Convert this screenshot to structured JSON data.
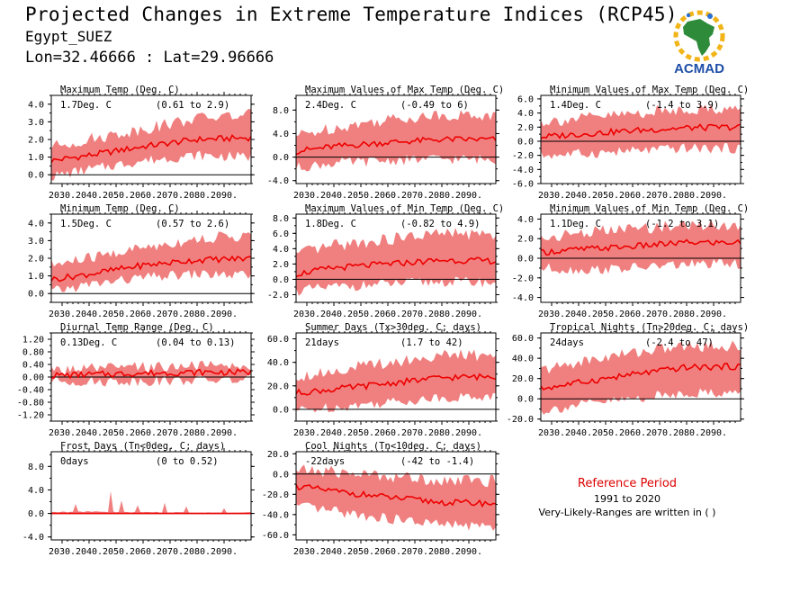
{
  "header": {
    "title": "Projected Changes in Extreme Temperature Indices (RCP45)",
    "location": "Egypt_SUEZ",
    "coords": "Lon=32.46666 : Lat=29.96666"
  },
  "logo": {
    "text": "ACMAD",
    "icon": "africa-map-icon"
  },
  "reference": {
    "title": "Reference Period",
    "years": "1991 to 2020",
    "note": "Very-Likely-Ranges are written in ( )"
  },
  "colors": {
    "band": "#f08080",
    "line": "#ee0000",
    "zero": "#000000",
    "ref_title": "#dd0000"
  },
  "chart_data": [
    {
      "type": "area",
      "id": "maxtemp",
      "title": "Maximum Temp (Deg. C)",
      "mean_label": "1.7Deg. C",
      "range_label": "(0.61 to 2.9)",
      "x_ticks": [
        "2030.",
        "2040.",
        "2050.",
        "2060.",
        "2070.",
        "2080.",
        "2090."
      ],
      "x_range": [
        2026,
        2100
      ],
      "ylim": [
        -0.5,
        4.5
      ],
      "yticks": [
        0,
        1,
        2,
        3,
        4
      ],
      "ydec": 1,
      "anchors": {
        "x": [
          2026,
          2040,
          2060,
          2080,
          2100
        ],
        "mean": [
          0.8,
          1.1,
          1.6,
          2.0,
          2.1
        ],
        "low": [
          -0.1,
          0.3,
          0.8,
          1.1,
          1.0
        ],
        "high": [
          1.6,
          2.0,
          2.6,
          3.2,
          3.4
        ]
      }
    },
    {
      "type": "area",
      "id": "maxofmax",
      "title": "Maximum Values of Max Temp (Deg. C)",
      "mean_label": "2.4Deg. C",
      "range_label": "(-0.49 to 6)",
      "x_ticks": [
        "2030.",
        "2040.",
        "2050.",
        "2060.",
        "2070.",
        "2080.",
        "2090."
      ],
      "x_range": [
        2026,
        2100
      ],
      "ylim": [
        -4.5,
        10.5
      ],
      "yticks": [
        -4,
        0,
        4,
        8
      ],
      "ydec": 1,
      "anchors": {
        "x": [
          2026,
          2040,
          2060,
          2080,
          2100
        ],
        "mean": [
          1.0,
          1.8,
          2.5,
          3.0,
          3.0
        ],
        "low": [
          -1.8,
          -1.0,
          -0.6,
          -0.3,
          -0.4
        ],
        "high": [
          3.6,
          5.0,
          6.4,
          7.2,
          7.0
        ]
      }
    },
    {
      "type": "area",
      "id": "minofmax",
      "title": "Minimum Values of Max Temp (Deg. C)",
      "mean_label": "1.4Deg. C",
      "range_label": "(-1.4 to 3.9)",
      "x_ticks": [
        "2030.",
        "2040.",
        "2050.",
        "2060.",
        "2070.",
        "2080.",
        "2090."
      ],
      "x_range": [
        2026,
        2100
      ],
      "ylim": [
        -6,
        6.5
      ],
      "yticks": [
        -6,
        -4,
        -2,
        0,
        2,
        4,
        6
      ],
      "ydec": 1,
      "anchors": {
        "x": [
          2026,
          2040,
          2060,
          2080,
          2100
        ],
        "mean": [
          0.6,
          1.0,
          1.5,
          1.9,
          2.0
        ],
        "low": [
          -2.0,
          -1.8,
          -1.4,
          -1.0,
          -1.0
        ],
        "high": [
          2.8,
          3.2,
          3.9,
          4.6,
          4.6
        ]
      }
    },
    {
      "type": "area",
      "id": "mintemp",
      "title": "Minimum Temp (Deg. C)",
      "mean_label": "1.5Deg. C",
      "range_label": "(0.57 to 2.6)",
      "x_ticks": [
        "2030.",
        "2040.",
        "2050.",
        "2060.",
        "2070.",
        "2080.",
        "2090."
      ],
      "x_range": [
        2026,
        2100
      ],
      "ylim": [
        -0.5,
        4.5
      ],
      "yticks": [
        0,
        1,
        2,
        3,
        4
      ],
      "ydec": 1,
      "anchors": {
        "x": [
          2026,
          2040,
          2060,
          2080,
          2100
        ],
        "mean": [
          0.8,
          1.1,
          1.6,
          1.9,
          2.0
        ],
        "low": [
          0.1,
          0.5,
          0.9,
          1.1,
          1.0
        ],
        "high": [
          1.6,
          2.0,
          2.6,
          3.1,
          3.3
        ]
      }
    },
    {
      "type": "area",
      "id": "maxofmin",
      "title": "Maximum Values of Min Temp (Deg. C)",
      "mean_label": "1.8Deg. C",
      "range_label": "(-0.82 to 4.9)",
      "x_ticks": [
        "2030.",
        "2040.",
        "2050.",
        "2060.",
        "2070.",
        "2080.",
        "2090."
      ],
      "x_range": [
        2026,
        2100
      ],
      "ylim": [
        -3,
        8.5
      ],
      "yticks": [
        -2,
        0,
        2,
        4,
        6,
        8
      ],
      "ydec": 1,
      "anchors": {
        "x": [
          2026,
          2040,
          2060,
          2080,
          2100
        ],
        "mean": [
          0.7,
          1.5,
          2.0,
          2.5,
          2.4
        ],
        "low": [
          -1.5,
          -1.0,
          -0.6,
          -0.3,
          -0.4
        ],
        "high": [
          3.2,
          4.4,
          5.2,
          6.0,
          5.8
        ]
      }
    },
    {
      "type": "area",
      "id": "minofmin",
      "title": "Minimum Values of Min Temp (Deg. C)",
      "mean_label": "1.1Deg. C",
      "range_label": "(-1.2 to 3.1)",
      "x_ticks": [
        "2030.",
        "2040.",
        "2050.",
        "2060.",
        "2070.",
        "2080.",
        "2090."
      ],
      "x_range": [
        2026,
        2100
      ],
      "ylim": [
        -4.5,
        4.5
      ],
      "yticks": [
        -4,
        -2,
        0,
        2,
        4
      ],
      "ydec": 1,
      "anchors": {
        "x": [
          2026,
          2040,
          2060,
          2080,
          2100
        ],
        "mean": [
          0.6,
          0.9,
          1.2,
          1.6,
          1.6
        ],
        "low": [
          -1.0,
          -1.2,
          -1.0,
          -0.6,
          -0.6
        ],
        "high": [
          2.0,
          2.6,
          3.0,
          3.4,
          3.4
        ]
      }
    },
    {
      "type": "area",
      "id": "dtr",
      "title": "Diurnal Temp Range (Deg. C)",
      "mean_label": "0.13Deg. C",
      "range_label": "(0.04 to 0.13)",
      "x_ticks": [
        "2030.",
        "2040.",
        "2050.",
        "2060.",
        "2070.",
        "2080.",
        "2090."
      ],
      "x_range": [
        2026,
        2100
      ],
      "ylim": [
        -1.4,
        1.4
      ],
      "yticks": [
        -1.2,
        -0.8,
        -0.4,
        0,
        0.4,
        0.8,
        1.2
      ],
      "ydec": 2,
      "anchors": {
        "x": [
          2026,
          2040,
          2060,
          2080,
          2100
        ],
        "mean": [
          0.05,
          0.08,
          0.12,
          0.15,
          0.15
        ],
        "low": [
          -0.12,
          -0.15,
          -0.12,
          -0.1,
          -0.1
        ],
        "high": [
          0.2,
          0.25,
          0.3,
          0.35,
          0.32
        ]
      }
    },
    {
      "type": "area",
      "id": "summer",
      "title": "Summer Days (Tx>30deg. C; days)",
      "mean_label": "21days",
      "range_label": "(1.7 to 42)",
      "x_ticks": [
        "2030.",
        "2040.",
        "2050.",
        "2060.",
        "2070.",
        "2080.",
        "2090."
      ],
      "x_range": [
        2026,
        2100
      ],
      "ylim": [
        -10,
        65
      ],
      "yticks": [
        0,
        20,
        40,
        60
      ],
      "ydec": 1,
      "anchors": {
        "x": [
          2026,
          2040,
          2060,
          2080,
          2100
        ],
        "mean": [
          14,
          17,
          22,
          27,
          28
        ],
        "low": [
          -1,
          2,
          6,
          10,
          11
        ],
        "high": [
          28,
          33,
          40,
          46,
          46
        ]
      }
    },
    {
      "type": "area",
      "id": "tropical",
      "title": "Tropical Nights (Tn>20deg. C; days)",
      "mean_label": "24days",
      "range_label": "(-2.4 to 47)",
      "x_ticks": [
        "2030.",
        "2040.",
        "2050.",
        "2060.",
        "2070.",
        "2080.",
        "2090."
      ],
      "x_range": [
        2026,
        2100
      ],
      "ylim": [
        -22,
        65
      ],
      "yticks": [
        -20,
        0,
        20,
        40,
        60
      ],
      "ydec": 1,
      "anchors": {
        "x": [
          2026,
          2040,
          2060,
          2080,
          2100
        ],
        "mean": [
          10,
          16,
          24,
          31,
          32
        ],
        "low": [
          -12,
          -6,
          0,
          6,
          6
        ],
        "high": [
          28,
          36,
          46,
          52,
          52
        ]
      }
    },
    {
      "type": "area",
      "id": "frost",
      "title": "Frost Days (Tn<0deg. C; days)",
      "mean_label": "0days",
      "range_label": "(0 to 0.52)",
      "x_ticks": [
        "2030.",
        "2040.",
        "2050.",
        "2060.",
        "2070.",
        "2080.",
        "2090."
      ],
      "x_range": [
        2026,
        2100
      ],
      "ylim": [
        -4.5,
        10.5
      ],
      "yticks": [
        -4,
        0,
        4,
        8
      ],
      "ydec": 1,
      "anchors": {
        "x": [
          2026,
          2040,
          2060,
          2080,
          2100
        ],
        "mean": [
          0,
          0,
          0,
          0,
          0
        ],
        "low": [
          0,
          0,
          0,
          0,
          0
        ],
        "high": [
          0.3,
          0.4,
          0.3,
          0.2,
          0.2
        ]
      },
      "spikes": [
        [
          2035,
          1.6
        ],
        [
          2048,
          3.8
        ],
        [
          2052,
          2.2
        ],
        [
          2058,
          1.4
        ],
        [
          2068,
          1.8
        ],
        [
          2076,
          1.2
        ],
        [
          2090,
          0.9
        ]
      ]
    },
    {
      "type": "area",
      "id": "cool",
      "title": "Cool Nights (Tn<10deg. C; days)",
      "mean_label": "-22days",
      "range_label": "(-42 to -1.4)",
      "x_ticks": [
        "2030.",
        "2040.",
        "2050.",
        "2060.",
        "2070.",
        "2080.",
        "2090."
      ],
      "x_range": [
        2026,
        2100
      ],
      "ylim": [
        -65,
        22
      ],
      "yticks": [
        -60,
        -40,
        -20,
        0,
        20
      ],
      "ydec": 1,
      "anchors": {
        "x": [
          2026,
          2040,
          2060,
          2080,
          2100
        ],
        "mean": [
          -12,
          -17,
          -23,
          -28,
          -29
        ],
        "low": [
          -32,
          -37,
          -44,
          -50,
          -52
        ],
        "high": [
          4,
          2,
          -2,
          -6,
          -7
        ]
      }
    }
  ]
}
